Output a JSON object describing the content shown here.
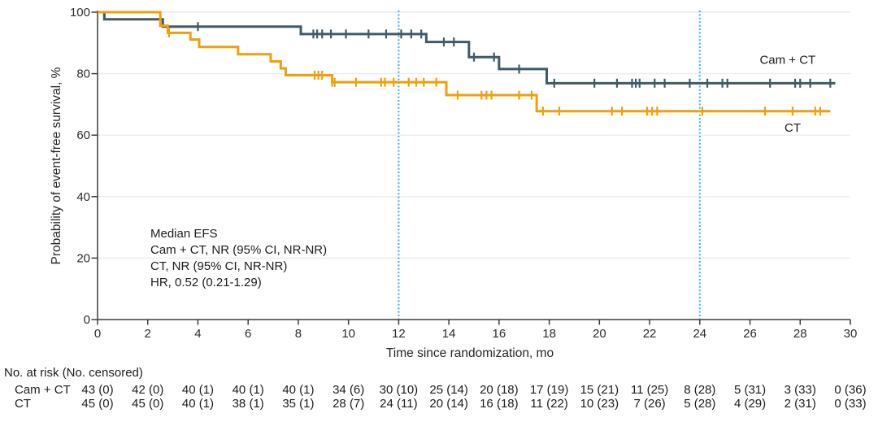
{
  "chart_data": {
    "type": "line",
    "subtype": "kaplan-meier-step",
    "title": "",
    "xlabel": "Time since randomization, mo",
    "ylabel": "Probability of event-free survival, %",
    "xlim": [
      0,
      30
    ],
    "ylim": [
      0,
      100
    ],
    "x_ticks": [
      0,
      2,
      4,
      6,
      8,
      10,
      12,
      14,
      16,
      18,
      20,
      22,
      24,
      26,
      28,
      30
    ],
    "y_ticks": [
      0,
      20,
      40,
      60,
      80,
      100
    ],
    "grid": "horizontal-light",
    "grid_color": "#ececec",
    "axis_color": "#3c3c3c",
    "reference_lines_x": [
      12,
      24
    ],
    "reference_line_color": "#35b4e5",
    "annotation": [
      "Median EFS",
      "Cam + CT, NR (95% CI, NR-NR)",
      "CT, NR (95% CI, NR-NR)",
      "HR, 0.52 (0.21-1.29)"
    ],
    "series": [
      {
        "name": "Cam + CT",
        "color": "#3f5a68",
        "steps": [
          [
            0,
            100
          ],
          [
            0.27,
            97.7
          ],
          [
            2.6,
            95.3
          ],
          [
            8.1,
            92.9
          ],
          [
            13.1,
            90.3
          ],
          [
            14.8,
            85.4
          ],
          [
            16.0,
            81.5
          ],
          [
            17.9,
            76.9
          ]
        ],
        "end_x": 29.4,
        "censor_x": [
          4.0,
          8.6,
          8.75,
          8.95,
          9.3,
          9.9,
          10.8,
          11.5,
          12.1,
          12.5,
          12.9,
          13.8,
          14.2,
          15.0,
          15.8,
          16.8,
          18.2,
          19.8,
          20.7,
          21.3,
          21.45,
          21.6,
          22.2,
          22.6,
          23.6,
          24.3,
          24.9,
          25.1,
          26.8,
          27.8,
          28.0,
          28.4,
          29.2
        ],
        "label": {
          "text": "Cam + CT",
          "x": 27.5,
          "y": 84.5
        }
      },
      {
        "name": "CT",
        "color": "#efa00a",
        "steps": [
          [
            0,
            100
          ],
          [
            2.5,
            95.6
          ],
          [
            2.8,
            93.3
          ],
          [
            3.7,
            91.1
          ],
          [
            4.05,
            88.7
          ],
          [
            5.6,
            86.3
          ],
          [
            6.9,
            84.0
          ],
          [
            7.3,
            81.7
          ],
          [
            7.5,
            79.5
          ],
          [
            9.35,
            77.2
          ],
          [
            13.9,
            73.0
          ],
          [
            17.5,
            67.8
          ]
        ],
        "end_x": 29.2,
        "censor_x": [
          2.85,
          8.65,
          8.8,
          8.95,
          9.35,
          9.45,
          10.3,
          11.3,
          11.45,
          11.8,
          12.4,
          12.7,
          13.0,
          13.5,
          14.35,
          15.3,
          15.5,
          15.7,
          16.8,
          17.3,
          17.75,
          18.4,
          20.5,
          20.9,
          21.9,
          22.1,
          22.3,
          24.1,
          26.6,
          27.7,
          28.6,
          28.8
        ],
        "label": {
          "text": "CT",
          "x": 27.7,
          "y": 62.5
        }
      }
    ]
  },
  "risk_table": {
    "header": "No. at risk (No. censored)",
    "months": [
      0,
      2,
      4,
      6,
      8,
      10,
      12,
      14,
      16,
      18,
      20,
      22,
      24,
      26,
      28,
      30
    ],
    "rows": [
      {
        "label": "Cam + CT",
        "values": [
          "43 (0)",
          "42 (0)",
          "40 (1)",
          "40 (1)",
          "40 (1)",
          "34 (6)",
          "30 (10)",
          "25 (14)",
          "20 (18)",
          "17 (19)",
          "15 (21)",
          "11 (25)",
          "8 (28)",
          "5 (31)",
          "3 (33)",
          "0 (36)"
        ]
      },
      {
        "label": "CT",
        "values": [
          "45 (0)",
          "45 (0)",
          "40 (1)",
          "38 (1)",
          "35 (1)",
          "28 (7)",
          "24 (11)",
          "20 (14)",
          "16 (18)",
          "11 (22)",
          "10 (23)",
          "7 (26)",
          "5 (28)",
          "4 (29)",
          "2 (31)",
          "0 (33)"
        ]
      }
    ]
  }
}
